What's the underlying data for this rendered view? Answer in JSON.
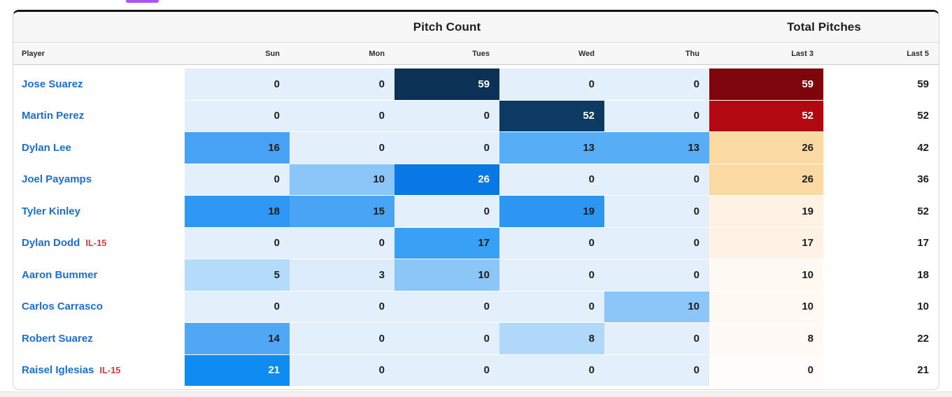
{
  "page": {
    "tab_indicator_color": "#a855f7",
    "background_color": "#ffffff",
    "footer_strip_color": "#f1f1f2"
  },
  "table": {
    "group_headers": {
      "pitch_count": "Pitch Count",
      "total_pitches": "Total Pitches"
    },
    "columns": {
      "player": "Player",
      "sun": "Sun",
      "mon": "Mon",
      "tues": "Tues",
      "wed": "Wed",
      "thu": "Thu",
      "last3": "Last 3",
      "last5": "Last 5"
    },
    "player_link_color": "#1a6fd4",
    "il_badge_color": "#e5372e",
    "heat_text_dark": "#1d1d1d",
    "heat_text_light": "#ffffff",
    "players": [
      {
        "name": "Jose Suarez",
        "il": "",
        "days": [
          0,
          0,
          59,
          0,
          0
        ],
        "last3": 59,
        "last5": 59,
        "day_colors": [
          "#e3f0fc",
          "#e3f0fc",
          "#0b3255",
          "#e3f0fc",
          "#e3f0fc"
        ],
        "day_fg": [
          "dark",
          "dark",
          "light",
          "dark",
          "dark"
        ],
        "last3_color": "#7d050b",
        "last3_fg": "light"
      },
      {
        "name": "Martin Perez",
        "il": "",
        "days": [
          0,
          0,
          0,
          52,
          0
        ],
        "last3": 52,
        "last5": 52,
        "day_colors": [
          "#e3f0fc",
          "#e3f0fc",
          "#e3f0fc",
          "#0d3a63",
          "#e3f0fc"
        ],
        "day_fg": [
          "dark",
          "dark",
          "dark",
          "light",
          "dark"
        ],
        "last3_color": "#b20811",
        "last3_fg": "light"
      },
      {
        "name": "Dylan Lee",
        "il": "",
        "days": [
          16,
          0,
          0,
          13,
          13
        ],
        "last3": 26,
        "last5": 42,
        "day_colors": [
          "#47a2f5",
          "#e3f0fc",
          "#e3f0fc",
          "#58adf7",
          "#58adf7"
        ],
        "day_fg": [
          "dark",
          "dark",
          "dark",
          "dark",
          "dark"
        ],
        "last3_color": "#fbd9a3",
        "last3_fg": "dark"
      },
      {
        "name": "Joel Payamps",
        "il": "",
        "days": [
          0,
          10,
          26,
          0,
          0
        ],
        "last3": 26,
        "last5": 36,
        "day_colors": [
          "#e3f0fc",
          "#8cc6f9",
          "#0878e5",
          "#e3f0fc",
          "#e3f0fc"
        ],
        "day_fg": [
          "dark",
          "dark",
          "light",
          "dark",
          "dark"
        ],
        "last3_color": "#fbd9a3",
        "last3_fg": "dark"
      },
      {
        "name": "Tyler Kinley",
        "il": "",
        "days": [
          18,
          15,
          0,
          19,
          0
        ],
        "last3": 19,
        "last5": 52,
        "day_colors": [
          "#2f98f4",
          "#4aa4f6",
          "#e3f0fc",
          "#2d96f3",
          "#e3f0fc"
        ],
        "day_fg": [
          "dark",
          "dark",
          "dark",
          "dark",
          "dark"
        ],
        "last3_color": "#fdf2e3",
        "last3_fg": "dark"
      },
      {
        "name": "Dylan Dodd",
        "il": "IL-15",
        "days": [
          0,
          0,
          17,
          0,
          0
        ],
        "last3": 17,
        "last5": 17,
        "day_colors": [
          "#e3f0fc",
          "#e3f0fc",
          "#38a0f5",
          "#e3f0fc",
          "#e3f0fc"
        ],
        "day_fg": [
          "dark",
          "dark",
          "dark",
          "dark",
          "dark"
        ],
        "last3_color": "#fdf2e3",
        "last3_fg": "dark"
      },
      {
        "name": "Aaron Bummer",
        "il": "",
        "days": [
          5,
          3,
          10,
          0,
          0
        ],
        "last3": 10,
        "last5": 18,
        "day_colors": [
          "#b5dbfb",
          "#ddecfb",
          "#8cc6f9",
          "#e3f0fc",
          "#e3f0fc"
        ],
        "day_fg": [
          "dark",
          "dark",
          "dark",
          "dark",
          "dark"
        ],
        "last3_color": "#fff9f3",
        "last3_fg": "dark"
      },
      {
        "name": "Carlos Carrasco",
        "il": "",
        "days": [
          0,
          0,
          0,
          0,
          10
        ],
        "last3": 10,
        "last5": 10,
        "day_colors": [
          "#e3f0fc",
          "#e3f0fc",
          "#e3f0fc",
          "#e3f0fc",
          "#8cc6f9"
        ],
        "day_fg": [
          "dark",
          "dark",
          "dark",
          "dark",
          "dark"
        ],
        "last3_color": "#fff9f3",
        "last3_fg": "dark"
      },
      {
        "name": "Robert Suarez",
        "il": "",
        "days": [
          14,
          0,
          0,
          8,
          0
        ],
        "last3": 8,
        "last5": 22,
        "day_colors": [
          "#50a7f6",
          "#e3f0fc",
          "#e3f0fc",
          "#b0d8fb",
          "#e3f0fc"
        ],
        "day_fg": [
          "dark",
          "dark",
          "dark",
          "dark",
          "dark"
        ],
        "last3_color": "#fffaf5",
        "last3_fg": "dark"
      },
      {
        "name": "Raisel Iglesias",
        "il": "IL-15",
        "days": [
          21,
          0,
          0,
          0,
          0
        ],
        "last3": 0,
        "last5": 21,
        "day_colors": [
          "#0e8cf1",
          "#e3f0fc",
          "#e3f0fc",
          "#e3f0fc",
          "#e3f0fc"
        ],
        "day_fg": [
          "light",
          "dark",
          "dark",
          "dark",
          "dark"
        ],
        "last3_color": "#fffdfb",
        "last3_fg": "dark"
      }
    ]
  }
}
